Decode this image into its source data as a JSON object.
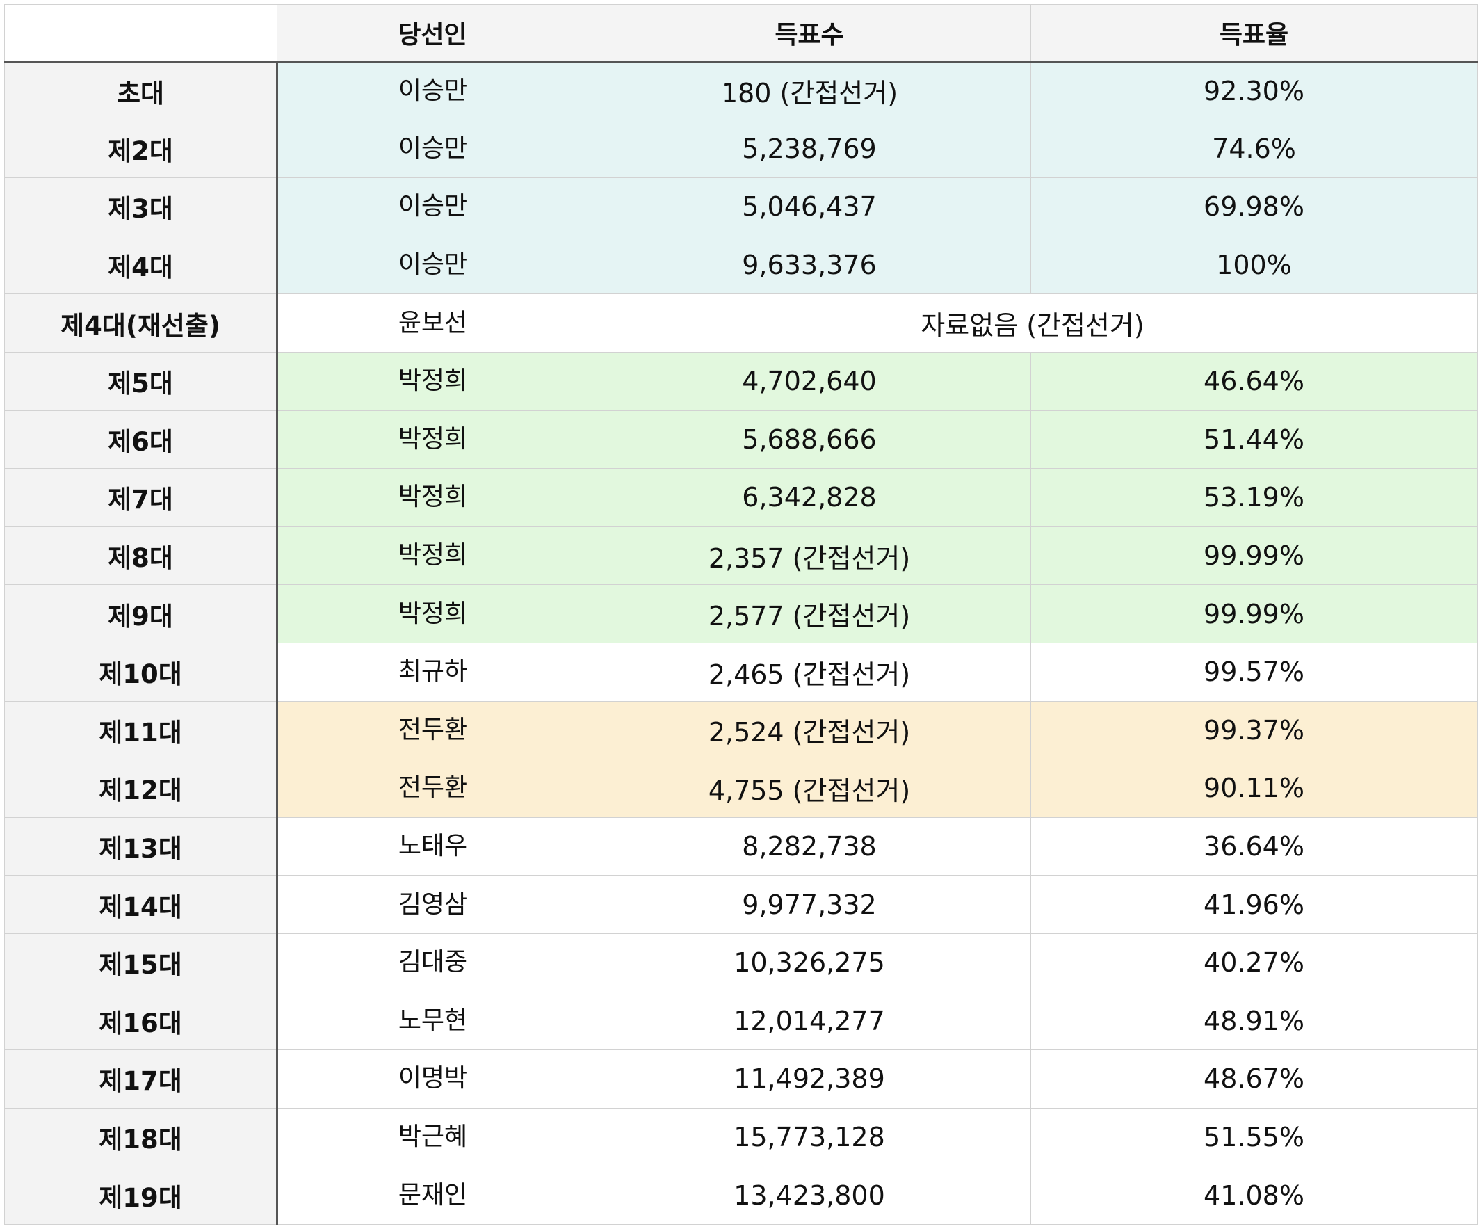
{
  "colors": {
    "blue_row": "#e5f4f4",
    "green_row": "#e2f8de",
    "yellow_row": "#fcefd3",
    "white_row": "#ffffff",
    "header_bg": "#f4f4f4"
  },
  "table": {
    "headers": {
      "corner": "",
      "winner": "당선인",
      "votes": "득표수",
      "rate": "득표율"
    },
    "rows": [
      {
        "generation": "초대",
        "winner": "이승만",
        "votes": "180 (간접선거)",
        "rate": "92.30%",
        "tone": "blue"
      },
      {
        "generation": "제2대",
        "winner": "이승만",
        "votes": "5,238,769",
        "rate": "74.6%",
        "tone": "blue"
      },
      {
        "generation": "제3대",
        "winner": "이승만",
        "votes": "5,046,437",
        "rate": "69.98%",
        "tone": "blue"
      },
      {
        "generation": "제4대",
        "winner": "이승만",
        "votes": "9,633,376",
        "rate": "100%",
        "tone": "blue"
      },
      {
        "generation": "제4대(재선출)",
        "winner": "윤보선",
        "merged": "자료없음 (간접선거)",
        "tone": "white"
      },
      {
        "generation": "제5대",
        "winner": "박정희",
        "votes": "4,702,640",
        "rate": "46.64%",
        "tone": "green"
      },
      {
        "generation": "제6대",
        "winner": "박정희",
        "votes": "5,688,666",
        "rate": "51.44%",
        "tone": "green"
      },
      {
        "generation": "제7대",
        "winner": "박정희",
        "votes": "6,342,828",
        "rate": "53.19%",
        "tone": "green"
      },
      {
        "generation": "제8대",
        "winner": "박정희",
        "votes": "2,357 (간접선거)",
        "rate": "99.99%",
        "tone": "green"
      },
      {
        "generation": "제9대",
        "winner": "박정희",
        "votes": "2,577 (간접선거)",
        "rate": "99.99%",
        "tone": "green"
      },
      {
        "generation": "제10대",
        "winner": "최규하",
        "votes": "2,465 (간접선거)",
        "rate": "99.57%",
        "tone": "white"
      },
      {
        "generation": "제11대",
        "winner": "전두환",
        "votes": "2,524 (간접선거)",
        "rate": "99.37%",
        "tone": "yellow"
      },
      {
        "generation": "제12대",
        "winner": "전두환",
        "votes": "4,755 (간접선거)",
        "rate": "90.11%",
        "tone": "yellow"
      },
      {
        "generation": "제13대",
        "winner": "노태우",
        "votes": "8,282,738",
        "rate": "36.64%",
        "tone": "white"
      },
      {
        "generation": "제14대",
        "winner": "김영삼",
        "votes": "9,977,332",
        "rate": "41.96%",
        "tone": "white"
      },
      {
        "generation": "제15대",
        "winner": "김대중",
        "votes": "10,326,275",
        "rate": "40.27%",
        "tone": "white"
      },
      {
        "generation": "제16대",
        "winner": "노무현",
        "votes": "12,014,277",
        "rate": "48.91%",
        "tone": "white"
      },
      {
        "generation": "제17대",
        "winner": "이명박",
        "votes": "11,492,389",
        "rate": "48.67%",
        "tone": "white"
      },
      {
        "generation": "제18대",
        "winner": "박근혜",
        "votes": "15,773,128",
        "rate": "51.55%",
        "tone": "white"
      },
      {
        "generation": "제19대",
        "winner": "문재인",
        "votes": "13,423,800",
        "rate": "41.08%",
        "tone": "white"
      }
    ]
  }
}
